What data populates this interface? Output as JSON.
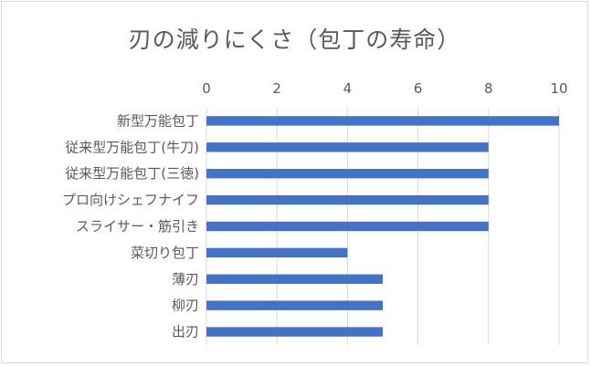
{
  "chart_data": {
    "type": "bar",
    "orientation": "horizontal",
    "title": "刃の減りにくさ（包丁の寿命）",
    "categories": [
      "新型万能包丁",
      "従来型万能包丁(牛刀)",
      "従来型万能包丁(三徳)",
      "プロ向けシェフナイフ",
      "スライサー・筋引き",
      "菜切り包丁",
      "薄刃",
      "柳刃",
      "出刃"
    ],
    "values": [
      10,
      8,
      8,
      8,
      8,
      4,
      5,
      5,
      5
    ],
    "xlim": [
      0,
      10
    ],
    "xticks": [
      0,
      2,
      4,
      6,
      8,
      10
    ],
    "xaxis_position": "top",
    "grid": true,
    "legend": "none",
    "bar_color": "#4472c4",
    "grid_color": "#d9d9d9"
  }
}
